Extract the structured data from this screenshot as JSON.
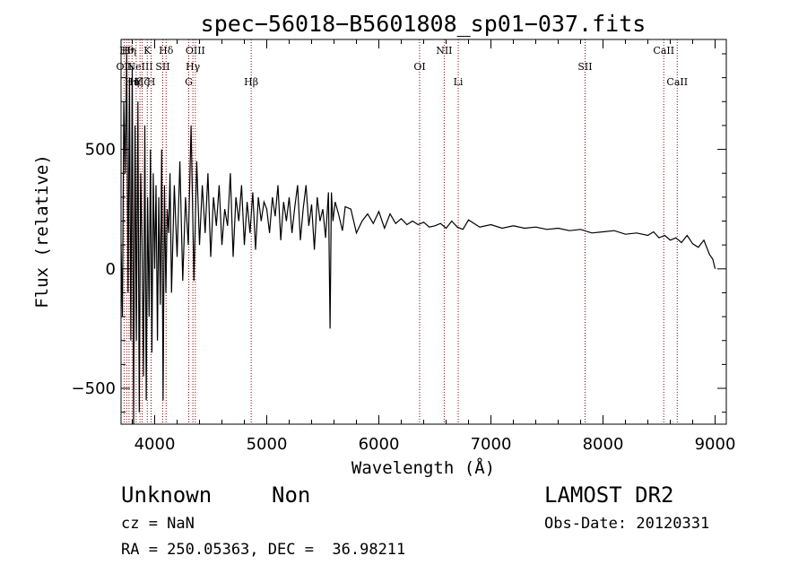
{
  "chart_data": {
    "type": "line",
    "title": "spec−56018−B5601808_sp01−037.fits",
    "xlabel": "Wavelength (Å)",
    "ylabel": "Flux (relative)",
    "xlim": [
      3700,
      9100
    ],
    "ylim": [
      -650,
      960
    ],
    "x_ticks": [
      4000,
      5000,
      6000,
      7000,
      8000,
      9000
    ],
    "y_ticks": [
      -500,
      0,
      500
    ],
    "y_tick_labels": [
      "−500",
      "0",
      "500"
    ],
    "grid": false,
    "series": [
      {
        "x": [
          3700,
          3712,
          3725,
          3737,
          3750,
          3762,
          3775,
          3787,
          3800,
          3812,
          3825,
          3837,
          3850,
          3862,
          3875,
          3887,
          3900,
          3912,
          3925,
          3937,
          3950,
          3962,
          3975,
          3987,
          4000,
          4012,
          4025,
          4037,
          4050,
          4062,
          4075,
          4087,
          4100,
          4112,
          4125,
          4137,
          4150,
          4175,
          4200,
          4225,
          4250,
          4275,
          4300,
          4325,
          4350,
          4375,
          4400,
          4425,
          4450,
          4475,
          4500,
          4525,
          4550,
          4575,
          4600,
          4625,
          4650,
          4675,
          4700,
          4725,
          4750,
          4775,
          4800,
          4825,
          4850,
          4875,
          4900,
          4925,
          4950,
          4975,
          5000,
          5025,
          5050,
          5075,
          5100,
          5125,
          5150,
          5175,
          5200,
          5225,
          5250,
          5275,
          5300,
          5325,
          5350,
          5375,
          5400,
          5425,
          5450,
          5475,
          5500,
          5525,
          5550,
          5565,
          5577,
          5590,
          5610,
          5640,
          5675,
          5700,
          5750,
          5800,
          5850,
          5900,
          5950,
          6000,
          6050,
          6100,
          6150,
          6200,
          6250,
          6300,
          6350,
          6400,
          6450,
          6500,
          6550,
          6600,
          6650,
          6700,
          6750,
          6800,
          6900,
          7000,
          7100,
          7200,
          7300,
          7400,
          7500,
          7600,
          7700,
          7800,
          7900,
          8000,
          8100,
          8200,
          8300,
          8400,
          8450,
          8500,
          8550,
          8600,
          8650,
          8700,
          8750,
          8800,
          8850,
          8900,
          8950,
          8980,
          9000
        ],
        "values": [
          100,
          -200,
          700,
          400,
          900,
          -100,
          800,
          -300,
          850,
          -650,
          600,
          -300,
          700,
          -600,
          400,
          100,
          -450,
          600,
          -550,
          300,
          -200,
          500,
          -350,
          400,
          0,
          350,
          -300,
          300,
          -150,
          500,
          -550,
          350,
          -100,
          250,
          150,
          400,
          -100,
          350,
          50,
          450,
          -50,
          300,
          100,
          600,
          -50,
          450,
          100,
          350,
          150,
          400,
          50,
          300,
          180,
          350,
          100,
          250,
          180,
          400,
          50,
          300,
          200,
          350,
          100,
          280,
          150,
          320,
          80,
          300,
          200,
          280,
          250,
          150,
          300,
          220,
          350,
          120,
          280,
          200,
          300,
          150,
          260,
          350,
          120,
          250,
          350,
          180,
          270,
          80,
          300,
          200,
          250,
          130,
          320,
          -250,
          320,
          200,
          280,
          230,
          160,
          260,
          250,
          150,
          200,
          230,
          190,
          240,
          170,
          230,
          190,
          210,
          185,
          200,
          185,
          195,
          175,
          180,
          190,
          170,
          200,
          175,
          165,
          205,
          175,
          185,
          170,
          180,
          170,
          175,
          165,
          170,
          160,
          165,
          150,
          155,
          160,
          145,
          150,
          140,
          155,
          130,
          140,
          120,
          130,
          110,
          140,
          105,
          90,
          120,
          60,
          40,
          0
        ]
      }
    ],
    "lines": [
      {
        "x": 3727,
        "label": "OII",
        "row": 2
      },
      {
        "x": 3750,
        "label": "Hθ",
        "row": 1
      },
      {
        "x": 3771,
        "label": "Hη",
        "row": 1
      },
      {
        "x": 3798,
        "label": "Hη",
        "row": 3
      },
      {
        "x": 3835,
        "label": "Hζ",
        "row": 3
      },
      {
        "x": 3869,
        "label": "NeIII",
        "row": 2
      },
      {
        "x": 3889,
        "label": "Hζ",
        "row": 3
      },
      {
        "x": 3934,
        "label": "K",
        "row": 1
      },
      {
        "x": 3968,
        "label": "H",
        "row": 3
      },
      {
        "x": 4072,
        "label": "SII",
        "row": 2
      },
      {
        "x": 4102,
        "label": "Hδ",
        "row": 1
      },
      {
        "x": 4304,
        "label": "G",
        "row": 3
      },
      {
        "x": 4341,
        "label": "Hγ",
        "row": 2
      },
      {
        "x": 4363,
        "label": "OIII",
        "row": 1
      },
      {
        "x": 4861,
        "label": "Hβ",
        "row": 3
      },
      {
        "x": 6364,
        "label": "OI",
        "row": 2
      },
      {
        "x": 6583,
        "label": "NII",
        "row": 1
      },
      {
        "x": 6708,
        "label": "Li",
        "row": 3
      },
      {
        "x": 7840,
        "label": "SII",
        "row": 2
      },
      {
        "x": 8542,
        "label": "CaII",
        "row": 1
      },
      {
        "x": 8662,
        "label": "CaII",
        "row": 3
      }
    ],
    "line_color": "#8b0000"
  },
  "info": {
    "class": "Unknown",
    "subclass": "Non",
    "cz": "cz = NaN",
    "coords": "RA = 250.05363, DEC =  36.98211",
    "survey": "LAMOST DR2",
    "obs_date": "Obs-Date: 20120331"
  }
}
